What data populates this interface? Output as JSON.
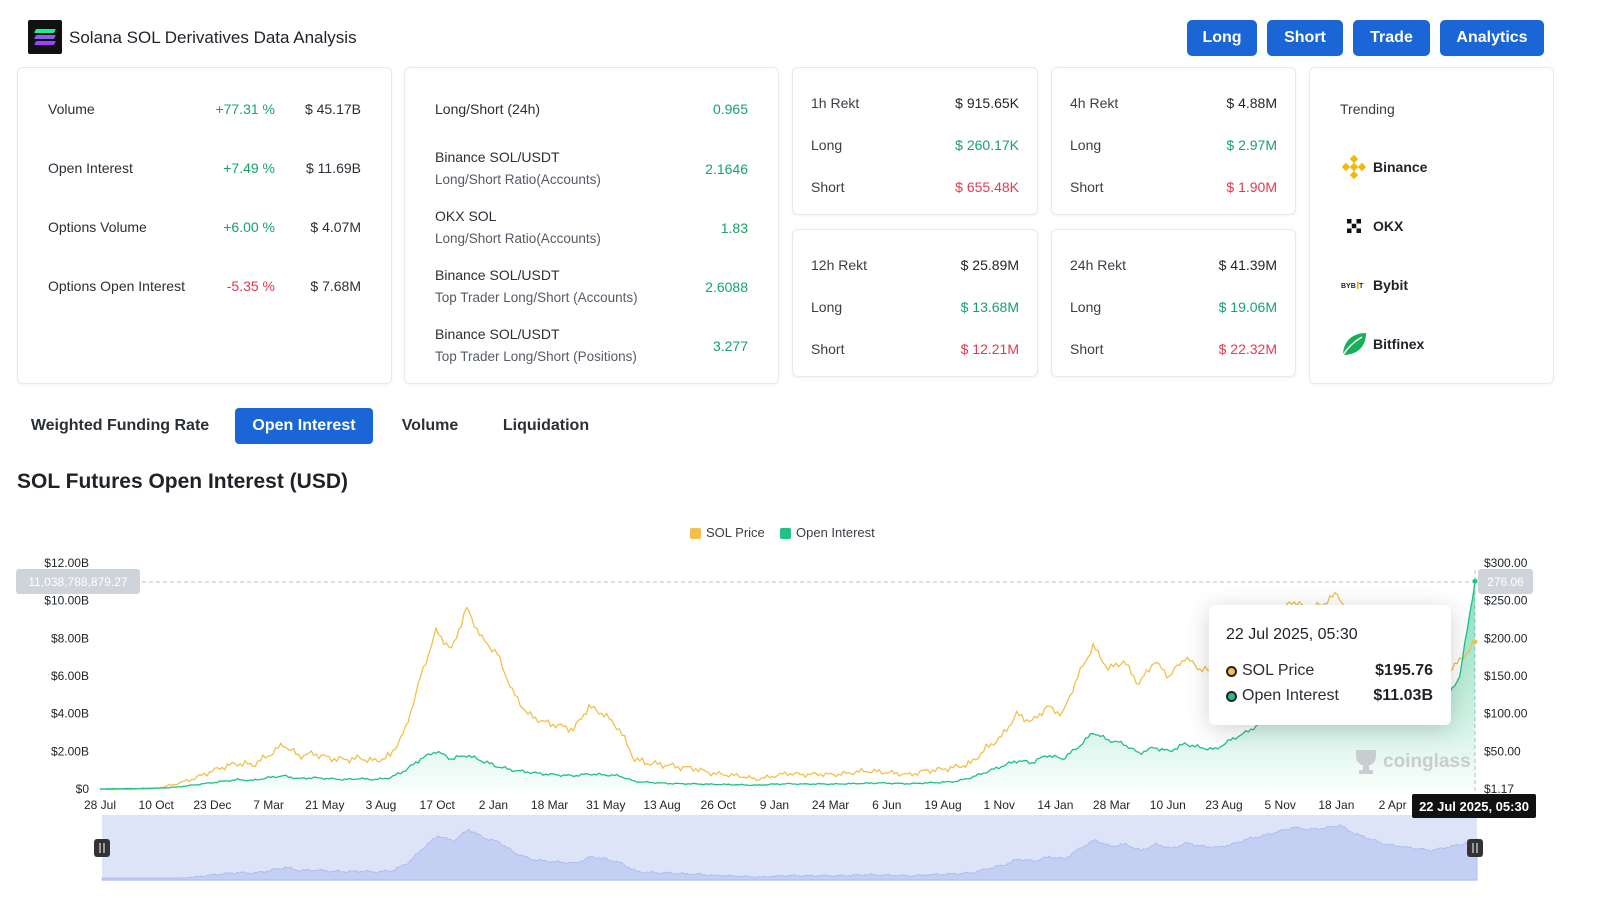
{
  "header": {
    "title": "Solana SOL Derivatives Data Analysis",
    "buttons": [
      "Long",
      "Short",
      "Trade",
      "Analytics"
    ]
  },
  "overview": [
    {
      "label": "Volume",
      "change": "+77.31 %",
      "value": "$ 45.17B"
    },
    {
      "label": "Open Interest",
      "change": "+7.49 %",
      "value": "$ 11.69B"
    },
    {
      "label": "Options Volume",
      "change": "+6.00 %",
      "value": "$ 4.07M"
    },
    {
      "label": "Options Open Interest",
      "change": "-5.35 %",
      "value": "$ 7.68M"
    }
  ],
  "ratios": [
    {
      "title": "Long/Short (24h)",
      "subtitle": "",
      "value": "0.965"
    },
    {
      "title": "Binance SOL/USDT",
      "subtitle": "Long/Short Ratio(Accounts)",
      "value": "2.1646"
    },
    {
      "title": "OKX SOL",
      "subtitle": "Long/Short Ratio(Accounts)",
      "value": "1.83"
    },
    {
      "title": "Binance SOL/USDT",
      "subtitle": "Top Trader Long/Short (Accounts)",
      "value": "2.6088"
    },
    {
      "title": "Binance SOL/USDT",
      "subtitle": "Top Trader Long/Short (Positions)",
      "value": "3.277"
    }
  ],
  "rekt": [
    {
      "label": "1h Rekt",
      "total": "$ 915.65K",
      "long_label": "Long",
      "long": "$ 260.17K",
      "short_label": "Short",
      "short": "$ 655.48K"
    },
    {
      "label": "4h Rekt",
      "total": "$ 4.88M",
      "long_label": "Long",
      "long": "$ 2.97M",
      "short_label": "Short",
      "short": "$ 1.90M"
    },
    {
      "label": "12h Rekt",
      "total": "$ 25.89M",
      "long_label": "Long",
      "long": "$ 13.68M",
      "short_label": "Short",
      "short": "$ 12.21M"
    },
    {
      "label": "24h Rekt",
      "total": "$ 41.39M",
      "long_label": "Long",
      "long": "$ 19.06M",
      "short_label": "Short",
      "short": "$ 22.32M"
    }
  ],
  "trending": {
    "title": "Trending",
    "items": [
      {
        "name": "Binance",
        "icon": "binance-icon"
      },
      {
        "name": "OKX",
        "icon": "okx-icon"
      },
      {
        "name": "Bybit",
        "icon": "bybit-icon"
      },
      {
        "name": "Bitfinex",
        "icon": "bitfinex-icon"
      }
    ]
  },
  "tabs": [
    {
      "label": "Weighted Funding Rate",
      "active": false
    },
    {
      "label": "Open Interest",
      "active": true
    },
    {
      "label": "Volume",
      "active": false
    },
    {
      "label": "Liquidation",
      "active": false
    }
  ],
  "section_title": "SOL Futures Open Interest (USD)",
  "tooltip": {
    "date": "22 Jul 2025, 05:30",
    "rows": [
      {
        "label": "SOL Price",
        "value": "$195.76"
      },
      {
        "label": "Open Interest",
        "value": "$11.03B"
      }
    ]
  },
  "crosshair": {
    "left_label": "11,038,788,879.27",
    "right_label": "276.06",
    "time_label": "22 Jul 2025, 05:30"
  },
  "watermark": "coinglass",
  "colors": {
    "accent": "#1a66d6",
    "positive": "#16a36a",
    "negative": "#e63950",
    "price_series": "#f2c04b",
    "oi_series": "#1fc283"
  },
  "chart_data": {
    "type": "line",
    "title": "",
    "legend_position": "top-center",
    "grid": false,
    "x_ticks": [
      "28 Jul",
      "10 Oct",
      "23 Dec",
      "7 Mar",
      "21 May",
      "3 Aug",
      "17 Oct",
      "2 Jan",
      "18 Mar",
      "31 May",
      "13 Aug",
      "26 Oct",
      "9 Jan",
      "24 Mar",
      "6 Jun",
      "19 Aug",
      "1 Nov",
      "14 Jan",
      "28 Mar",
      "10 Jun",
      "23 Aug",
      "5 Nov",
      "18 Jan",
      "2 Apr"
    ],
    "y_left": {
      "ticks": [
        "$12.00B",
        "$10.00B",
        "$8.00B",
        "$6.00B",
        "$4.00B",
        "$2.00B",
        "$0"
      ],
      "range": [
        0,
        12
      ]
    },
    "y_right": {
      "ticks": [
        "$300.00",
        "$250.00",
        "$200.00",
        "$150.00",
        "$100.00",
        "$50.00",
        "$1.17"
      ],
      "range": [
        1.17,
        300
      ]
    },
    "series": [
      {
        "name": "SOL Price",
        "axis": "right",
        "values": [
          0.5,
          0.6,
          0.8,
          1.5,
          3,
          8,
          14,
          22,
          30,
          35,
          33,
          45,
          60,
          45,
          48,
          42,
          40,
          42,
          38,
          45,
          80,
          150,
          210,
          185,
          240,
          200,
          180,
          130,
          100,
          90,
          85,
          80,
          110,
          100,
          80,
          40,
          35,
          33,
          30,
          28,
          22,
          20,
          18,
          14,
          18,
          22,
          20,
          21,
          20,
          22,
          25,
          24,
          22,
          20,
          25,
          27,
          30,
          35,
          55,
          70,
          100,
          90,
          110,
          100,
          150,
          190,
          160,
          170,
          140,
          170,
          150,
          175,
          160,
          155,
          170,
          195,
          210,
          230,
          250,
          240,
          245,
          260,
          220,
          195,
          170,
          160,
          150,
          140,
          155,
          170,
          195.76
        ]
      },
      {
        "name": "Open Interest",
        "axis": "left",
        "values": [
          0.01,
          0.01,
          0.02,
          0.03,
          0.05,
          0.1,
          0.2,
          0.3,
          0.4,
          0.5,
          0.45,
          0.6,
          0.7,
          0.55,
          0.6,
          0.55,
          0.5,
          0.55,
          0.5,
          0.6,
          1.0,
          1.6,
          2.0,
          1.6,
          1.8,
          1.5,
          1.2,
          1.0,
          0.9,
          0.8,
          0.75,
          0.7,
          0.8,
          0.75,
          0.7,
          0.4,
          0.35,
          0.3,
          0.28,
          0.27,
          0.25,
          0.24,
          0.22,
          0.2,
          0.25,
          0.28,
          0.26,
          0.27,
          0.26,
          0.28,
          0.3,
          0.32,
          0.3,
          0.28,
          0.32,
          0.35,
          0.4,
          0.6,
          0.9,
          1.2,
          1.5,
          1.4,
          1.8,
          1.6,
          2.2,
          3.0,
          2.6,
          2.4,
          1.9,
          2.2,
          2.0,
          2.4,
          2.2,
          2.1,
          2.6,
          3.0,
          3.5,
          4.0,
          4.6,
          4.3,
          4.8,
          5.6,
          5.0,
          4.7,
          4.4,
          4.2,
          4.0,
          3.8,
          4.6,
          6.0,
          11.03
        ]
      }
    ]
  }
}
